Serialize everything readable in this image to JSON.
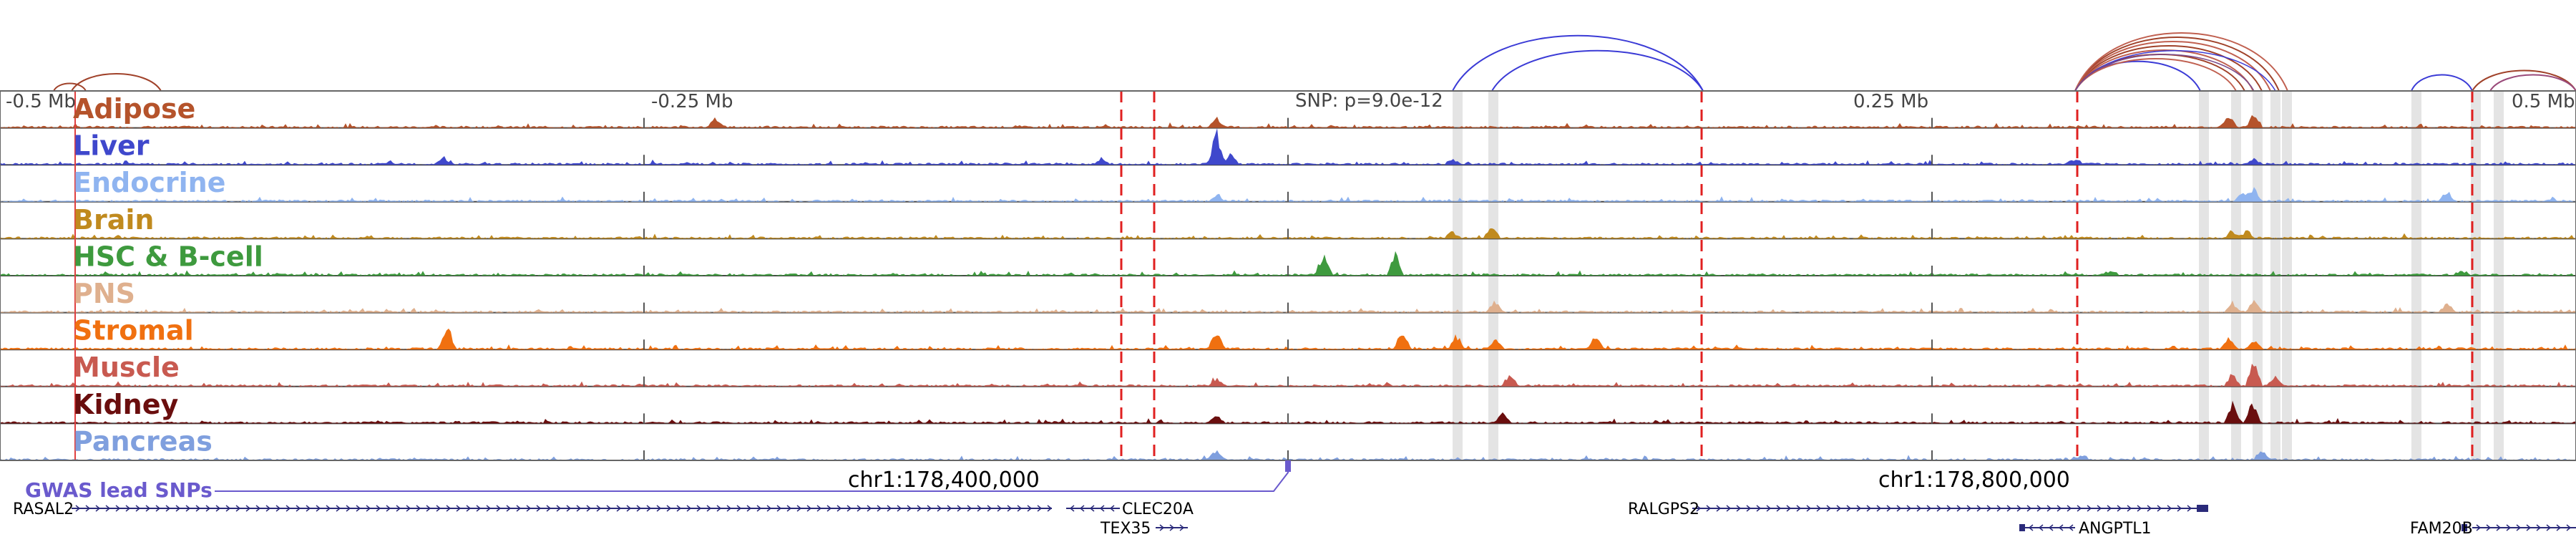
{
  "ticks": [
    {
      "label": "-0.5 Mb",
      "pos": 0.0
    },
    {
      "label": "-0.25 Mb",
      "pos": 0.25
    },
    {
      "label": "0.25 Mb",
      "pos": 0.75
    },
    {
      "label": "0.5 Mb",
      "pos": 1.0
    }
  ],
  "snp_label": "SNP: p=9.0e-12",
  "tracks": [
    {
      "name": "Adipose",
      "color": "#b5532b"
    },
    {
      "name": "Liver",
      "color": "#3f48cc"
    },
    {
      "name": "Endocrine",
      "color": "#8fb4f0"
    },
    {
      "name": "Brain",
      "color": "#c08a1e"
    },
    {
      "name": "HSC & B-cell",
      "color": "#3e9a3e"
    },
    {
      "name": "PNS",
      "color": "#dfb08e"
    },
    {
      "name": "Stromal",
      "color": "#f07010"
    },
    {
      "name": "Muscle",
      "color": "#c85a50"
    },
    {
      "name": "Kidney",
      "color": "#6a0e0e"
    },
    {
      "name": "Pancreas",
      "color": "#7f9fde"
    }
  ],
  "coord_labels": [
    "chr1:178,400,000",
    "chr1:178,800,000"
  ],
  "gwas_label": "GWAS lead SNPs",
  "genes": [
    {
      "name": "RASAL2"
    },
    {
      "name": "CLEC20A"
    },
    {
      "name": "TEX35"
    },
    {
      "name": "RALGPS2"
    },
    {
      "name": "ANGPTL1"
    },
    {
      "name": "FAM20B"
    }
  ],
  "colors": {
    "loop_blue": "#3b3bd6",
    "loop_red": "#a0422a",
    "dashed_red": "#e02020",
    "highlight": "#d8d8d8",
    "gene_track": "#2a2a7a",
    "gwas": "#6a5acd"
  }
}
